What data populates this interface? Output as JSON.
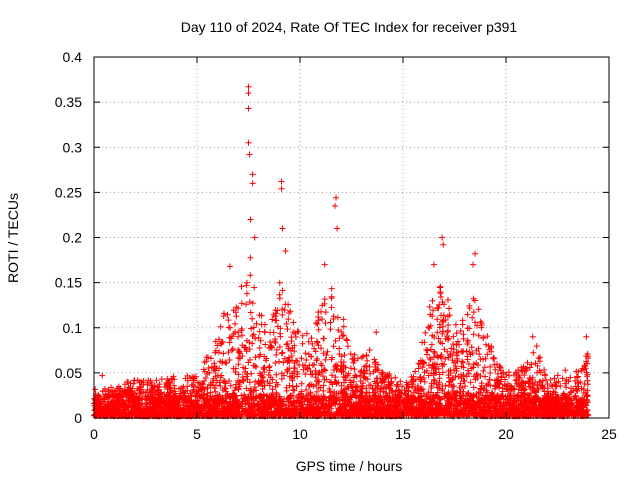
{
  "chart_data": {
    "type": "scatter",
    "title": "Day 110 of 2024, Rate Of TEC Index for receiver p391",
    "xlabel": "GPS time / hours",
    "ylabel": "ROTI / TECUs",
    "xlim": [
      0,
      25
    ],
    "ylim": [
      0,
      0.4
    ],
    "x_ticks": [
      0,
      5,
      10,
      15,
      20,
      25
    ],
    "x_tick_labels": [
      "0",
      "5",
      "10",
      "15",
      "20",
      "25"
    ],
    "y_ticks": [
      0,
      0.05,
      0.1,
      0.15,
      0.2,
      0.25,
      0.3,
      0.35,
      0.4
    ],
    "y_tick_labels": [
      "0",
      "0.05",
      "0.1",
      "0.15",
      "0.2",
      "0.25",
      "0.3",
      "0.35",
      "0.4"
    ],
    "grid": true,
    "marker": "+",
    "series": [
      {
        "name": "ROTI",
        "color": "#ff0000",
        "notable_points": [
          {
            "x": 7.5,
            "y": 0.367
          },
          {
            "x": 7.5,
            "y": 0.36
          },
          {
            "x": 7.5,
            "y": 0.343
          },
          {
            "x": 7.5,
            "y": 0.305
          },
          {
            "x": 7.55,
            "y": 0.292
          },
          {
            "x": 7.7,
            "y": 0.27
          },
          {
            "x": 7.7,
            "y": 0.26
          },
          {
            "x": 7.6,
            "y": 0.22
          },
          {
            "x": 7.8,
            "y": 0.2
          },
          {
            "x": 9.1,
            "y": 0.262
          },
          {
            "x": 9.1,
            "y": 0.254
          },
          {
            "x": 9.15,
            "y": 0.21
          },
          {
            "x": 9.3,
            "y": 0.185
          },
          {
            "x": 11.75,
            "y": 0.244
          },
          {
            "x": 11.7,
            "y": 0.235
          },
          {
            "x": 11.8,
            "y": 0.21
          },
          {
            "x": 11.2,
            "y": 0.17
          },
          {
            "x": 16.9,
            "y": 0.2
          },
          {
            "x": 16.95,
            "y": 0.192
          },
          {
            "x": 16.5,
            "y": 0.17
          },
          {
            "x": 18.5,
            "y": 0.182
          },
          {
            "x": 18.4,
            "y": 0.17
          },
          {
            "x": 6.6,
            "y": 0.168
          },
          {
            "x": 21.3,
            "y": 0.09
          },
          {
            "x": 23.9,
            "y": 0.09
          },
          {
            "x": 13.7,
            "y": 0.095
          },
          {
            "x": 0.4,
            "y": 0.047
          }
        ],
        "envelope": [
          {
            "x": 0,
            "y": 0.03
          },
          {
            "x": 1,
            "y": 0.035
          },
          {
            "x": 2,
            "y": 0.04
          },
          {
            "x": 3,
            "y": 0.04
          },
          {
            "x": 4,
            "y": 0.045
          },
          {
            "x": 5,
            "y": 0.045
          },
          {
            "x": 6,
            "y": 0.09
          },
          {
            "x": 6.5,
            "y": 0.13
          },
          {
            "x": 7,
            "y": 0.12
          },
          {
            "x": 7.5,
            "y": 0.2
          },
          {
            "x": 8,
            "y": 0.12
          },
          {
            "x": 8.5,
            "y": 0.09
          },
          {
            "x": 9,
            "y": 0.15
          },
          {
            "x": 9.5,
            "y": 0.12
          },
          {
            "x": 10,
            "y": 0.09
          },
          {
            "x": 10.5,
            "y": 0.1
          },
          {
            "x": 11,
            "y": 0.13
          },
          {
            "x": 11.5,
            "y": 0.15
          },
          {
            "x": 12,
            "y": 0.12
          },
          {
            "x": 12.5,
            "y": 0.07
          },
          {
            "x": 13,
            "y": 0.065
          },
          {
            "x": 13.5,
            "y": 0.08
          },
          {
            "x": 14,
            "y": 0.05
          },
          {
            "x": 15,
            "y": 0.04
          },
          {
            "x": 15.5,
            "y": 0.045
          },
          {
            "x": 16,
            "y": 0.1
          },
          {
            "x": 16.5,
            "y": 0.14
          },
          {
            "x": 17,
            "y": 0.15
          },
          {
            "x": 17.5,
            "y": 0.1
          },
          {
            "x": 18,
            "y": 0.11
          },
          {
            "x": 18.5,
            "y": 0.14
          },
          {
            "x": 19,
            "y": 0.1
          },
          {
            "x": 19.5,
            "y": 0.06
          },
          {
            "x": 20,
            "y": 0.05
          },
          {
            "x": 20.5,
            "y": 0.05
          },
          {
            "x": 21,
            "y": 0.06
          },
          {
            "x": 21.5,
            "y": 0.08
          },
          {
            "x": 22,
            "y": 0.04
          },
          {
            "x": 22.5,
            "y": 0.045
          },
          {
            "x": 23,
            "y": 0.055
          },
          {
            "x": 23.5,
            "y": 0.05
          },
          {
            "x": 24,
            "y": 0.075
          }
        ],
        "x_range": [
          0,
          24
        ]
      }
    ]
  }
}
